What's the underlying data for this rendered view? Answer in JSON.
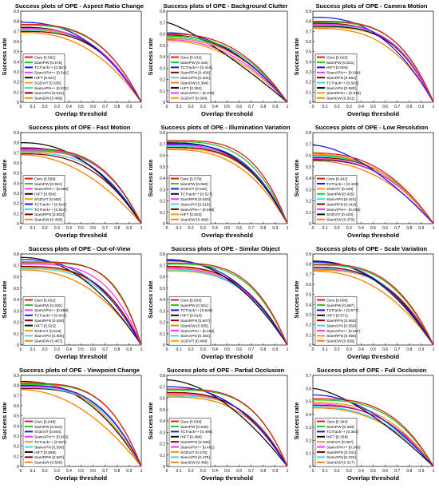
{
  "colors": {
    "Ours": "#e41a1c",
    "SiamPW": "#22cc22",
    "TCTrack++": "#1a1aee",
    "SiamAPN++": "#ff33ff",
    "HIFT": "#111111",
    "SGDViT": "#ff9900",
    "SiamRPN": "#880000",
    "SiamAPN": "#33dddd",
    "SiamDW": "#ff7f00",
    "TCTrack": "#2288ff"
  },
  "common": {
    "xlabel": "Overlap threshold",
    "ylabel": "Success rate",
    "xticks": [
      "0",
      "0.1",
      "0.2",
      "0.3",
      "0.4",
      "0.5",
      "0.6",
      "0.7",
      "0.8",
      "0.9",
      "1"
    ],
    "yticks": [
      "0",
      "0.1",
      "0.2",
      "0.3",
      "0.4",
      "0.5",
      "0.6",
      "0.7",
      "0.8"
    ]
  },
  "chart_data": [
    {
      "type": "line",
      "title": "Success plots of OPE - Aspect Ratio Change",
      "xlabel": "Overlap threshold",
      "ylabel": "Success rate",
      "xlim": [
        0,
        1
      ],
      "ylim": [
        0,
        0.9
      ],
      "legend": "bottom-left",
      "series": [
        {
          "name": "Ours [0.581]",
          "auc": 0.581,
          "start": 0.77,
          "colorKey": "Ours"
        },
        {
          "name": "SiamPW [0.575]",
          "auc": 0.575,
          "start": 0.76,
          "colorKey": "SiamPW"
        },
        {
          "name": "TCTrack++ [0.557]",
          "auc": 0.557,
          "start": 0.79,
          "colorKey": "TCTrack++"
        },
        {
          "name": "SiamAPN++ [0.541]",
          "auc": 0.541,
          "start": 0.73,
          "colorKey": "SiamAPN++"
        },
        {
          "name": "HIFT [0.537]",
          "auc": 0.537,
          "start": 0.74,
          "colorKey": "HIFT"
        },
        {
          "name": "SGDViT [0.535]",
          "auc": 0.535,
          "start": 0.72,
          "colorKey": "SGDViT"
        },
        {
          "name": "SiamAPN++ [0.531]",
          "auc": 0.531,
          "start": 0.71,
          "colorKey": "SiamAPN"
        },
        {
          "name": "SiamAPN [0.522]",
          "auc": 0.522,
          "start": 0.7,
          "colorKey": "SiamRPN"
        },
        {
          "name": "SiamDW [0.489]",
          "auc": 0.489,
          "start": 0.69,
          "colorKey": "SiamDW"
        }
      ]
    },
    {
      "type": "line",
      "title": "Success plots of OPE - Background Clutter",
      "xlabel": "Overlap threshold",
      "ylabel": "Success rate",
      "xlim": [
        0,
        1
      ],
      "ylim": [
        0,
        0.8
      ],
      "legend": "bottom-left",
      "series": [
        {
          "name": "Ours [0.432]",
          "auc": 0.432,
          "start": 0.6,
          "colorKey": "Ours"
        },
        {
          "name": "SiamPW [0.416]",
          "auc": 0.416,
          "start": 0.58,
          "colorKey": "SiamPW"
        },
        {
          "name": "TCTrack++ [0.415]",
          "auc": 0.415,
          "start": 0.61,
          "colorKey": "TCTrack++"
        },
        {
          "name": "SiamRPN [0.406]",
          "auc": 0.406,
          "start": 0.59,
          "colorKey": "SiamRPN"
        },
        {
          "name": "SiamAPN [0.402]",
          "auc": 0.402,
          "start": 0.57,
          "colorKey": "SiamAPN"
        },
        {
          "name": "SiamDW [0.394]",
          "auc": 0.394,
          "start": 0.56,
          "colorKey": "SiamDW"
        },
        {
          "name": "HIFT [0.392]",
          "auc": 0.392,
          "start": 0.7,
          "colorKey": "HIFT"
        },
        {
          "name": "SiamAPN++ [0.378]",
          "auc": 0.378,
          "start": 0.55,
          "colorKey": "SiamAPN++"
        },
        {
          "name": "SGDViT [0.364]",
          "auc": 0.364,
          "start": 0.54,
          "colorKey": "SGDViT"
        }
      ]
    },
    {
      "type": "line",
      "title": "Success plots of OPE - Camera Motion",
      "xlabel": "Overlap threshold",
      "ylabel": "Success rate",
      "xlim": [
        0,
        1
      ],
      "ylim": [
        0,
        0.9
      ],
      "legend": "bottom-left",
      "series": [
        {
          "name": "Ours [0.625]",
          "auc": 0.625,
          "start": 0.8,
          "colorKey": "Ours"
        },
        {
          "name": "SiamPW [0.621]",
          "auc": 0.621,
          "start": 0.79,
          "colorKey": "SiamPW"
        },
        {
          "name": "HIFT [0.600]",
          "auc": 0.6,
          "start": 0.84,
          "colorKey": "TCTrack++"
        },
        {
          "name": "SiamAPN++ [0.594]",
          "auc": 0.594,
          "start": 0.77,
          "colorKey": "SiamAPN++"
        },
        {
          "name": "SiamRPN [0.593]",
          "auc": 0.593,
          "start": 0.78,
          "colorKey": "SiamRPN"
        },
        {
          "name": "TCTrack++ [0.593]",
          "auc": 0.593,
          "start": 0.76,
          "colorKey": "SiamAPN"
        },
        {
          "name": "SiamAPN [0.580]",
          "auc": 0.58,
          "start": 0.75,
          "colorKey": "HIFT"
        },
        {
          "name": "SiamRPN++ [0.576]",
          "auc": 0.576,
          "start": 0.74,
          "colorKey": "SGDViT"
        },
        {
          "name": "SiamDW [0.541]",
          "auc": 0.541,
          "start": 0.73,
          "colorKey": "SiamDW"
        }
      ]
    },
    {
      "type": "line",
      "title": "Success plots of OPE - Fast Motion",
      "xlabel": "Overlap threshold",
      "ylabel": "Success rate",
      "xlim": [
        0,
        1
      ],
      "ylim": [
        0,
        0.9
      ],
      "legend": "bottom-left",
      "series": [
        {
          "name": "Ours [0.569]",
          "auc": 0.569,
          "start": 0.74,
          "colorKey": "Ours"
        },
        {
          "name": "SiamPW [0.561]",
          "auc": 0.561,
          "start": 0.73,
          "colorKey": "SiamPW"
        },
        {
          "name": "SiamAPN++ [0.554]",
          "auc": 0.554,
          "start": 0.72,
          "colorKey": "SiamAPN++"
        },
        {
          "name": "HIFT [0.554]",
          "auc": 0.554,
          "start": 0.8,
          "colorKey": "HIFT"
        },
        {
          "name": "SGDViT [0.552]",
          "auc": 0.552,
          "start": 0.71,
          "colorKey": "SGDViT"
        },
        {
          "name": "TCTrack++ [0.543]",
          "auc": 0.543,
          "start": 0.75,
          "colorKey": "TCTrack++"
        },
        {
          "name": "TCTrack++ [0.524]",
          "auc": 0.524,
          "start": 0.7,
          "colorKey": "SiamAPN"
        },
        {
          "name": "SiamRPN [0.502]",
          "auc": 0.502,
          "start": 0.69,
          "colorKey": "SiamRPN"
        },
        {
          "name": "SiamDW [0.456]",
          "auc": 0.456,
          "start": 0.68,
          "colorKey": "SiamDW"
        }
      ]
    },
    {
      "type": "line",
      "title": "Success plots of OPE - Illumination Variation",
      "xlabel": "Overlap threshold",
      "ylabel": "Success rate",
      "xlim": [
        0,
        1
      ],
      "ylim": [
        0,
        0.8
      ],
      "legend": "bottom-left",
      "series": [
        {
          "name": "Ours [0.579]",
          "auc": 0.579,
          "start": 0.73,
          "colorKey": "Ours"
        },
        {
          "name": "SiamPW [0.560]",
          "auc": 0.56,
          "start": 0.72,
          "colorKey": "SiamPW"
        },
        {
          "name": "SGDViT [0.532]",
          "auc": 0.532,
          "start": 0.7,
          "colorKey": "TCTrack++"
        },
        {
          "name": "TCTrack++ [0.527]",
          "auc": 0.527,
          "start": 0.71,
          "colorKey": "HIFT"
        },
        {
          "name": "SiamRPN [0.520]",
          "auc": 0.52,
          "start": 0.69,
          "colorKey": "SiamAPN++"
        },
        {
          "name": "SiamAPN [0.519]",
          "auc": 0.519,
          "start": 0.68,
          "colorKey": "SiamAPN"
        },
        {
          "name": "SiamAPN++ [0.509]",
          "auc": 0.509,
          "start": 0.67,
          "colorKey": "SiamRPN"
        },
        {
          "name": "HIFT [0.502]",
          "auc": 0.502,
          "start": 0.66,
          "colorKey": "SGDViT"
        },
        {
          "name": "SiamDW [0.480]",
          "auc": 0.48,
          "start": 0.65,
          "colorKey": "SiamDW"
        }
      ]
    },
    {
      "type": "line",
      "title": "Success plots of OPE - Low Resolution",
      "xlabel": "Overlap threshold",
      "ylabel": "Success rate",
      "xlim": [
        0,
        1
      ],
      "ylim": [
        0,
        0.8
      ],
      "legend": "bottom-left",
      "series": [
        {
          "name": "Ours [0.442]",
          "auc": 0.442,
          "start": 0.62,
          "colorKey": "Ours"
        },
        {
          "name": "TCTrack++ [0.429]",
          "auc": 0.429,
          "start": 0.69,
          "colorKey": "TCTrack++"
        },
        {
          "name": "SGDViT [0.428]",
          "auc": 0.428,
          "start": 0.61,
          "colorKey": "SGDViT"
        },
        {
          "name": "SiamPW [0.425]",
          "auc": 0.425,
          "start": 0.6,
          "colorKey": "SiamPW"
        },
        {
          "name": "SiamAPN [0.424]",
          "auc": 0.424,
          "start": 0.59,
          "colorKey": "SiamAPN"
        },
        {
          "name": "SiamRPN [0.419]",
          "auc": 0.419,
          "start": 0.58,
          "colorKey": "SiamRPN"
        },
        {
          "name": "SiamAPN++ [0.406]",
          "auc": 0.406,
          "start": 0.57,
          "colorKey": "SiamAPN++"
        },
        {
          "name": "SGDViT [0.403]",
          "auc": 0.403,
          "start": 0.56,
          "colorKey": "HIFT"
        },
        {
          "name": "SiamDW [0.379]",
          "auc": 0.379,
          "start": 0.55,
          "colorKey": "SiamDW"
        }
      ]
    },
    {
      "type": "line",
      "title": "Success plots of OPE - Out-of-View",
      "xlabel": "Overlap threshold",
      "ylabel": "Success rate",
      "xlim": [
        0,
        1
      ],
      "ylim": [
        0,
        0.8
      ],
      "legend": "bottom-left",
      "series": [
        {
          "name": "Ours [0.602]",
          "auc": 0.602,
          "start": 0.73,
          "colorKey": "Ours"
        },
        {
          "name": "SiamPW [0.600]",
          "auc": 0.6,
          "start": 0.72,
          "colorKey": "SiamPW"
        },
        {
          "name": "SiamAPN++ [0.559]",
          "auc": 0.559,
          "start": 0.71,
          "colorKey": "SiamAPN++"
        },
        {
          "name": "TCTrack++ [0.542]",
          "auc": 0.542,
          "start": 0.75,
          "colorKey": "TCTrack++"
        },
        {
          "name": "SiamRPN [0.526]",
          "auc": 0.526,
          "start": 0.69,
          "colorKey": "SiamRPN"
        },
        {
          "name": "HIFT [0.522]",
          "auc": 0.522,
          "start": 0.77,
          "colorKey": "HIFT"
        },
        {
          "name": "SGDViT [0.518]",
          "auc": 0.518,
          "start": 0.68,
          "colorKey": "SGDViT"
        },
        {
          "name": "SiamAPN [0.506]",
          "auc": 0.506,
          "start": 0.67,
          "colorKey": "SiamAPN"
        },
        {
          "name": "SiamDW [0.467]",
          "auc": 0.467,
          "start": 0.66,
          "colorKey": "SiamDW"
        }
      ]
    },
    {
      "type": "line",
      "title": "Success plots of OPE - Similar Object",
      "xlabel": "Overlap threshold",
      "ylabel": "Success rate",
      "xlim": [
        0,
        1
      ],
      "ylim": [
        0,
        0.8
      ],
      "legend": "bottom-left",
      "series": [
        {
          "name": "Ours [0.563]",
          "auc": 0.563,
          "start": 0.72,
          "colorKey": "Ours"
        },
        {
          "name": "SiamPW [0.551]",
          "auc": 0.551,
          "start": 0.71,
          "colorKey": "SiamPW"
        },
        {
          "name": "TCTrack++ [0.526]",
          "auc": 0.526,
          "start": 0.74,
          "colorKey": "TCTrack++"
        },
        {
          "name": "HIFT [0.514]",
          "auc": 0.514,
          "start": 0.75,
          "colorKey": "HIFT"
        },
        {
          "name": "SiamRPN [0.507]",
          "auc": 0.507,
          "start": 0.69,
          "colorKey": "SiamRPN"
        },
        {
          "name": "SiamDW [0.505]",
          "auc": 0.505,
          "start": 0.68,
          "colorKey": "SiamDW"
        },
        {
          "name": "SiamAPN++ [0.493]",
          "auc": 0.493,
          "start": 0.67,
          "colorKey": "SiamAPN++"
        },
        {
          "name": "SiamAPN [0.484]",
          "auc": 0.484,
          "start": 0.66,
          "colorKey": "SiamAPN"
        },
        {
          "name": "SGDViT [0.484]",
          "auc": 0.484,
          "start": 0.65,
          "colorKey": "SGDViT"
        }
      ]
    },
    {
      "type": "line",
      "title": "Success plots of OPE - Scale Variation",
      "xlabel": "Overlap threshold",
      "ylabel": "Success rate",
      "xlim": [
        0,
        1
      ],
      "ylim": [
        0,
        0.9
      ],
      "legend": "bottom-left",
      "series": [
        {
          "name": "Ours [0.608]",
          "auc": 0.608,
          "start": 0.8,
          "colorKey": "Ours"
        },
        {
          "name": "SiamPW [0.597]",
          "auc": 0.597,
          "start": 0.79,
          "colorKey": "SiamPW"
        },
        {
          "name": "TCTrack++ [0.577]",
          "auc": 0.577,
          "start": 0.82,
          "colorKey": "TCTrack++"
        },
        {
          "name": "HIFT [0.571]",
          "auc": 0.571,
          "start": 0.83,
          "colorKey": "HIFT"
        },
        {
          "name": "SiamRPN [0.563]",
          "auc": 0.563,
          "start": 0.77,
          "colorKey": "SiamRPN"
        },
        {
          "name": "SiamAPN [0.558]",
          "auc": 0.558,
          "start": 0.76,
          "colorKey": "SiamAPN"
        },
        {
          "name": "SiamAPN++ [0.557]",
          "auc": 0.557,
          "start": 0.75,
          "colorKey": "SiamAPN++"
        },
        {
          "name": "SiamRPN [0.556]",
          "auc": 0.556,
          "start": 0.74,
          "colorKey": "SGDViT"
        },
        {
          "name": "SiamDW [0.509]",
          "auc": 0.509,
          "start": 0.73,
          "colorKey": "SiamDW"
        }
      ]
    },
    {
      "type": "line",
      "title": "Success plots of OPE - Viewpoint Change",
      "xlabel": "Overlap threshold",
      "ylabel": "Success rate",
      "xlim": [
        0,
        1
      ],
      "ylim": [
        0,
        0.9
      ],
      "legend": "bottom-left",
      "series": [
        {
          "name": "Ours [0.648]",
          "auc": 0.648,
          "start": 0.82,
          "colorKey": "Ours"
        },
        {
          "name": "SiamPW [0.642]",
          "auc": 0.642,
          "start": 0.81,
          "colorKey": "SiamPW"
        },
        {
          "name": "SGDViT [0.604]",
          "auc": 0.604,
          "start": 0.8,
          "colorKey": "TCTrack++"
        },
        {
          "name": "SiamAPN++ [0.602]",
          "auc": 0.602,
          "start": 0.79,
          "colorKey": "SiamAPN++"
        },
        {
          "name": "TCTrack++ [0.597]",
          "auc": 0.597,
          "start": 0.83,
          "colorKey": "SGDViT"
        },
        {
          "name": "SiamAPN [0.590]",
          "auc": 0.59,
          "start": 0.78,
          "colorKey": "SiamAPN"
        },
        {
          "name": "HIFT [0.588]",
          "auc": 0.588,
          "start": 0.84,
          "colorKey": "HIFT"
        },
        {
          "name": "SiamRPN [0.587]",
          "auc": 0.587,
          "start": 0.77,
          "colorKey": "SiamRPN"
        },
        {
          "name": "SiamDW [0.506]",
          "auc": 0.506,
          "start": 0.76,
          "colorKey": "SiamDW"
        }
      ]
    },
    {
      "type": "line",
      "title": "Success plots of OPE - Partial Occlusion",
      "xlabel": "Overlap threshold",
      "ylabel": "Success rate",
      "xlim": [
        0,
        1
      ],
      "ylim": [
        0,
        0.8
      ],
      "legend": "bottom-left",
      "series": [
        {
          "name": "Ours [0.536]",
          "auc": 0.536,
          "start": 0.68,
          "colorKey": "Ours"
        },
        {
          "name": "SiamPW [0.530]",
          "auc": 0.53,
          "start": 0.67,
          "colorKey": "SiamPW"
        },
        {
          "name": "TCTrack++ [0.496]",
          "auc": 0.496,
          "start": 0.7,
          "colorKey": "TCTrack++"
        },
        {
          "name": "HIFT [0.488]",
          "auc": 0.488,
          "start": 0.76,
          "colorKey": "HIFT"
        },
        {
          "name": "SiamRPN [0.483]",
          "auc": 0.483,
          "start": 0.65,
          "colorKey": "SiamRPN"
        },
        {
          "name": "SiamAPN++ [0.481]",
          "auc": 0.481,
          "start": 0.64,
          "colorKey": "SiamAPN++"
        },
        {
          "name": "SGDViT [0.476]",
          "auc": 0.476,
          "start": 0.63,
          "colorKey": "SGDViT"
        },
        {
          "name": "SiamAPN [0.475]",
          "auc": 0.475,
          "start": 0.62,
          "colorKey": "SiamAPN"
        },
        {
          "name": "SiamDW [0.456]",
          "auc": 0.456,
          "start": 0.61,
          "colorKey": "SiamDW"
        }
      ]
    },
    {
      "type": "line",
      "title": "Success plots of OPE - Full Occlusion",
      "xlabel": "Overlap threshold",
      "ylabel": "Success rate",
      "xlim": [
        0,
        1
      ],
      "ylim": [
        0,
        0.7
      ],
      "legend": "bottom-left",
      "series": [
        {
          "name": "Ours [0.394]",
          "auc": 0.394,
          "start": 0.52,
          "colorKey": "Ours"
        },
        {
          "name": "SiamPW [0.383]",
          "auc": 0.383,
          "start": 0.51,
          "colorKey": "SiamPW"
        },
        {
          "name": "TCTrack++ [0.364]",
          "auc": 0.364,
          "start": 0.55,
          "colorKey": "TCTrack++"
        },
        {
          "name": "HIFT [0.358]",
          "auc": 0.358,
          "start": 0.6,
          "colorKey": "HIFT"
        },
        {
          "name": "SGDViT [0.357]",
          "auc": 0.357,
          "start": 0.49,
          "colorKey": "SGDViT"
        },
        {
          "name": "SiamAPN++ [0.343]",
          "auc": 0.343,
          "start": 0.48,
          "colorKey": "SiamAPN++"
        },
        {
          "name": "SiamRPN [0.341]",
          "auc": 0.341,
          "start": 0.47,
          "colorKey": "SiamRPN"
        },
        {
          "name": "SiamAPN [0.323]",
          "auc": 0.323,
          "start": 0.46,
          "colorKey": "SiamAPN"
        },
        {
          "name": "SiamDW [0.317]",
          "auc": 0.317,
          "start": 0.45,
          "colorKey": "SiamDW"
        }
      ]
    }
  ]
}
